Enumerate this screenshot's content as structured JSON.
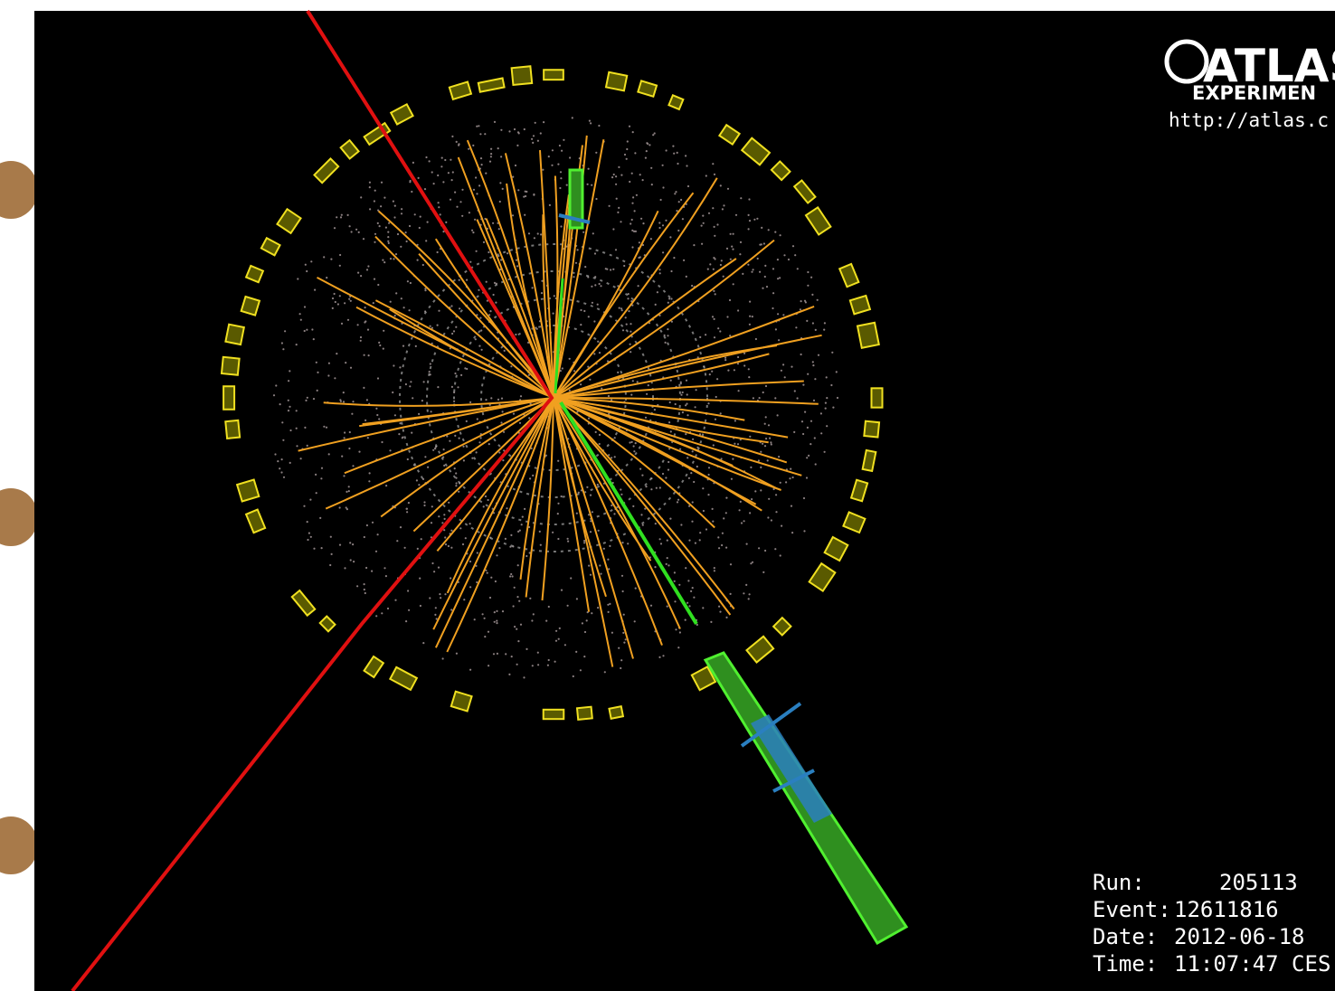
{
  "logo": {
    "title": "ATLAS",
    "subtitle": "EXPERIMEN",
    "url": "http://atlas.c"
  },
  "event_info": [
    {
      "label": "Run:",
      "value": "205113"
    },
    {
      "label": "Event:",
      "value": "12611816"
    },
    {
      "label": "Date:",
      "value": "2012-06-18"
    },
    {
      "label": "Time:",
      "value": "11:07:47 CES"
    }
  ]
}
